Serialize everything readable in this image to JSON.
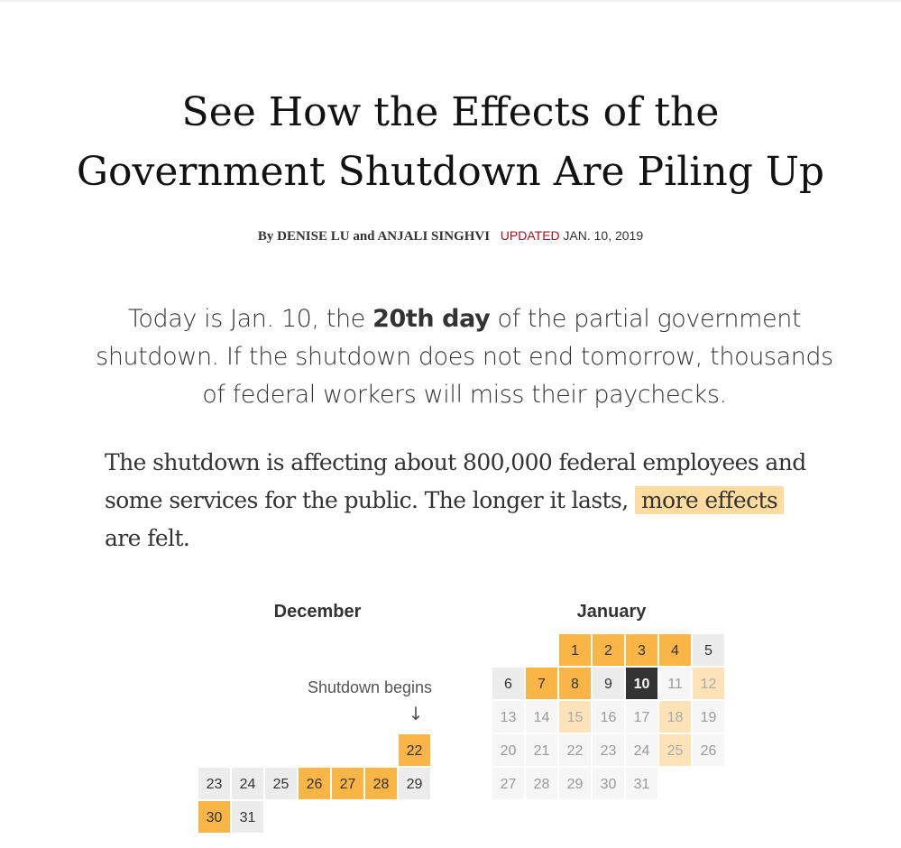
{
  "article": {
    "headline_line1": "See How the Effects of the",
    "headline_line2": "Government Shutdown Are Piling Up",
    "byline": {
      "prefix": "By",
      "author1": "DENISE LU",
      "joiner": "and",
      "author2": "ANJALI SINGHVI",
      "updated_label": "UPDATED",
      "date": "JAN. 10, 2019"
    },
    "summary": {
      "before": "Today is Jan. 10, the ",
      "bold": "20th day",
      "after": " of the partial government shutdown. If the shutdown does not end tomorrow, thousands of federal workers will miss their paychecks."
    },
    "body": {
      "before": "The shutdown is affecting about 800,000 federal employees and some services for the public. The longer it lasts, ",
      "highlight": "more effects",
      "after": " are felt."
    }
  },
  "calendar": {
    "colors": {
      "effect_day": "#f9b545",
      "future_effect": "#fde3b7",
      "today": "#333333",
      "normal_day": "#ececec",
      "future_day": "#f6f6f6"
    },
    "shutdown_label": "Shutdown begins",
    "arrow": "↓",
    "december": {
      "title": "December",
      "days": [
        {
          "day": "22",
          "state": "effect"
        },
        {
          "day": "23",
          "state": "normal"
        },
        {
          "day": "24",
          "state": "normal"
        },
        {
          "day": "25",
          "state": "normal"
        },
        {
          "day": "26",
          "state": "effect"
        },
        {
          "day": "27",
          "state": "effect"
        },
        {
          "day": "28",
          "state": "effect"
        },
        {
          "day": "29",
          "state": "normal"
        },
        {
          "day": "30",
          "state": "effect"
        },
        {
          "day": "31",
          "state": "normal"
        }
      ]
    },
    "january": {
      "title": "January",
      "days": [
        {
          "day": "1",
          "state": "effect"
        },
        {
          "day": "2",
          "state": "effect"
        },
        {
          "day": "3",
          "state": "effect"
        },
        {
          "day": "4",
          "state": "effect"
        },
        {
          "day": "5",
          "state": "normal"
        },
        {
          "day": "6",
          "state": "normal"
        },
        {
          "day": "7",
          "state": "effect"
        },
        {
          "day": "8",
          "state": "effect"
        },
        {
          "day": "9",
          "state": "normal"
        },
        {
          "day": "10",
          "state": "today"
        },
        {
          "day": "11",
          "state": "future"
        },
        {
          "day": "12",
          "state": "future-effect"
        },
        {
          "day": "13",
          "state": "future"
        },
        {
          "day": "14",
          "state": "future"
        },
        {
          "day": "15",
          "state": "future-effect"
        },
        {
          "day": "16",
          "state": "future"
        },
        {
          "day": "17",
          "state": "future"
        },
        {
          "day": "18",
          "state": "future-effect"
        },
        {
          "day": "19",
          "state": "future"
        },
        {
          "day": "20",
          "state": "future"
        },
        {
          "day": "21",
          "state": "future"
        },
        {
          "day": "22",
          "state": "future"
        },
        {
          "day": "23",
          "state": "future"
        },
        {
          "day": "24",
          "state": "future"
        },
        {
          "day": "25",
          "state": "future-effect"
        },
        {
          "day": "26",
          "state": "future"
        },
        {
          "day": "27",
          "state": "future"
        },
        {
          "day": "28",
          "state": "future"
        },
        {
          "day": "29",
          "state": "future"
        },
        {
          "day": "30",
          "state": "future"
        },
        {
          "day": "31",
          "state": "future"
        }
      ]
    }
  }
}
